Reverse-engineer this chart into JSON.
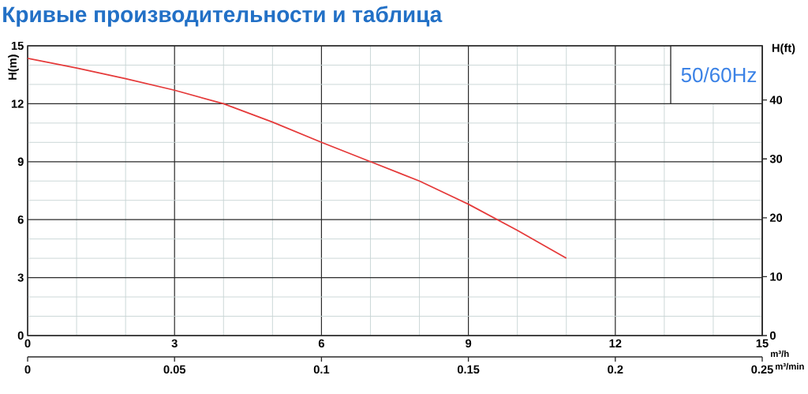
{
  "chart_data": {
    "type": "line",
    "title": "Кривые производительности и таблица",
    "xlabel": "m³/h",
    "x2label": "m³/min",
    "ylabel": "H(m)",
    "y2label": "H(ft)",
    "annotations": [
      "50/60Hz"
    ],
    "x": [
      0,
      1,
      2,
      3,
      4,
      5,
      6,
      7,
      8,
      9,
      10,
      11
    ],
    "series": [
      {
        "color": "#e53a3a",
        "values": [
          14.35,
          13.85,
          13.3,
          12.7,
          12.0,
          11.05,
          10.0,
          9.0,
          8.0,
          6.8,
          5.45,
          4.0
        ]
      }
    ],
    "xlim": [
      0,
      15
    ],
    "xticks": [
      0,
      3,
      6,
      9,
      12,
      15
    ],
    "x2lim": [
      0,
      0.25
    ],
    "x2ticks": [
      0,
      0.05,
      0.1,
      0.15,
      0.2,
      0.25
    ],
    "ylim": [
      0,
      15
    ],
    "yticks": [
      0,
      3,
      6,
      9,
      12,
      15
    ],
    "y2lim": [
      0,
      49.2
    ],
    "y2ticks": [
      0,
      10,
      20,
      30,
      40
    ],
    "grid": true
  }
}
